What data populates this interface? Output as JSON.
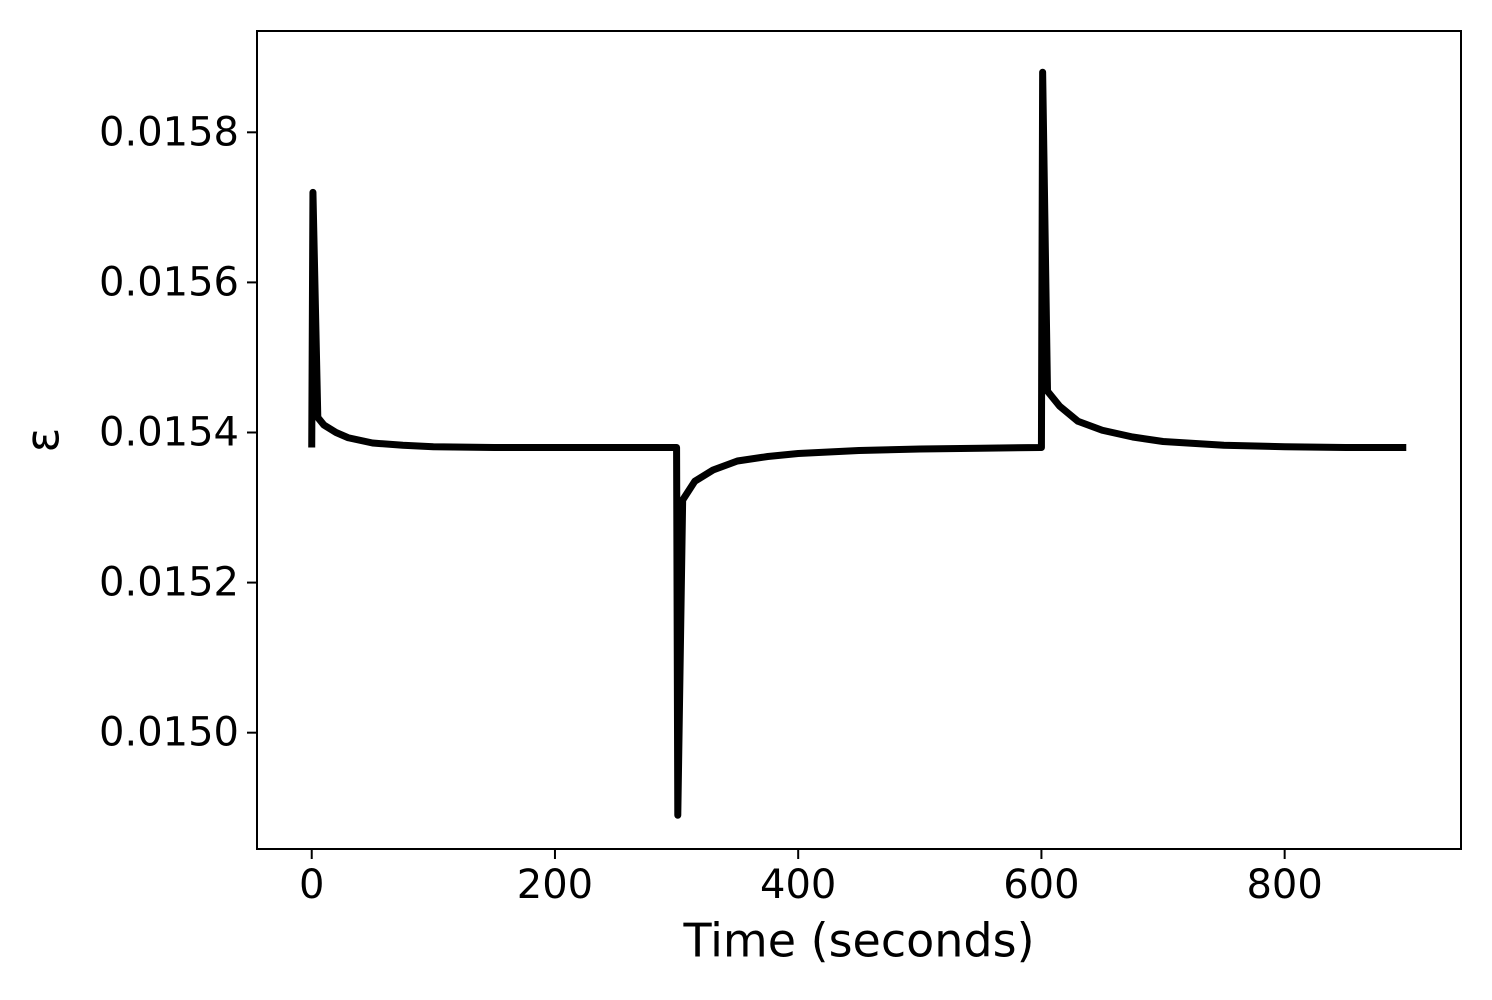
{
  "chart_data": {
    "type": "line",
    "xlabel": "Time (seconds)",
    "ylabel": "ε",
    "x": [
      0,
      1,
      5,
      10,
      20,
      30,
      50,
      75,
      100,
      150,
      200,
      250,
      299,
      300,
      301,
      305,
      315,
      330,
      350,
      375,
      400,
      450,
      500,
      550,
      599,
      600,
      601,
      605,
      615,
      630,
      650,
      675,
      700,
      750,
      800,
      850,
      900
    ],
    "series": [
      {
        "color": "#000000",
        "values": [
          0.01538,
          0.01572,
          0.01542,
          0.01541,
          0.0154,
          0.015393,
          0.015386,
          0.015383,
          0.015381,
          0.01538,
          0.01538,
          0.01538,
          0.01538,
          0.01538,
          0.01489,
          0.01531,
          0.015335,
          0.01535,
          0.015362,
          0.015368,
          0.015372,
          0.015376,
          0.015378,
          0.015379,
          0.01538,
          0.01538,
          0.01588,
          0.015455,
          0.015435,
          0.015415,
          0.015403,
          0.015394,
          0.015388,
          0.015383,
          0.015381,
          0.01538,
          0.01538
        ]
      }
    ],
    "xlim": [
      -45,
      945
    ],
    "ylim": [
      0.014845,
      0.015935
    ],
    "xticks": [
      0,
      200,
      400,
      600,
      800
    ],
    "yticks": [
      {
        "value": 0.015,
        "label": "0.0150"
      },
      {
        "value": 0.0152,
        "label": "0.0152"
      },
      {
        "value": 0.0154,
        "label": "0.0154"
      },
      {
        "value": 0.0156,
        "label": "0.0156"
      },
      {
        "value": 0.0158,
        "label": "0.0158"
      }
    ],
    "grid": false
  }
}
